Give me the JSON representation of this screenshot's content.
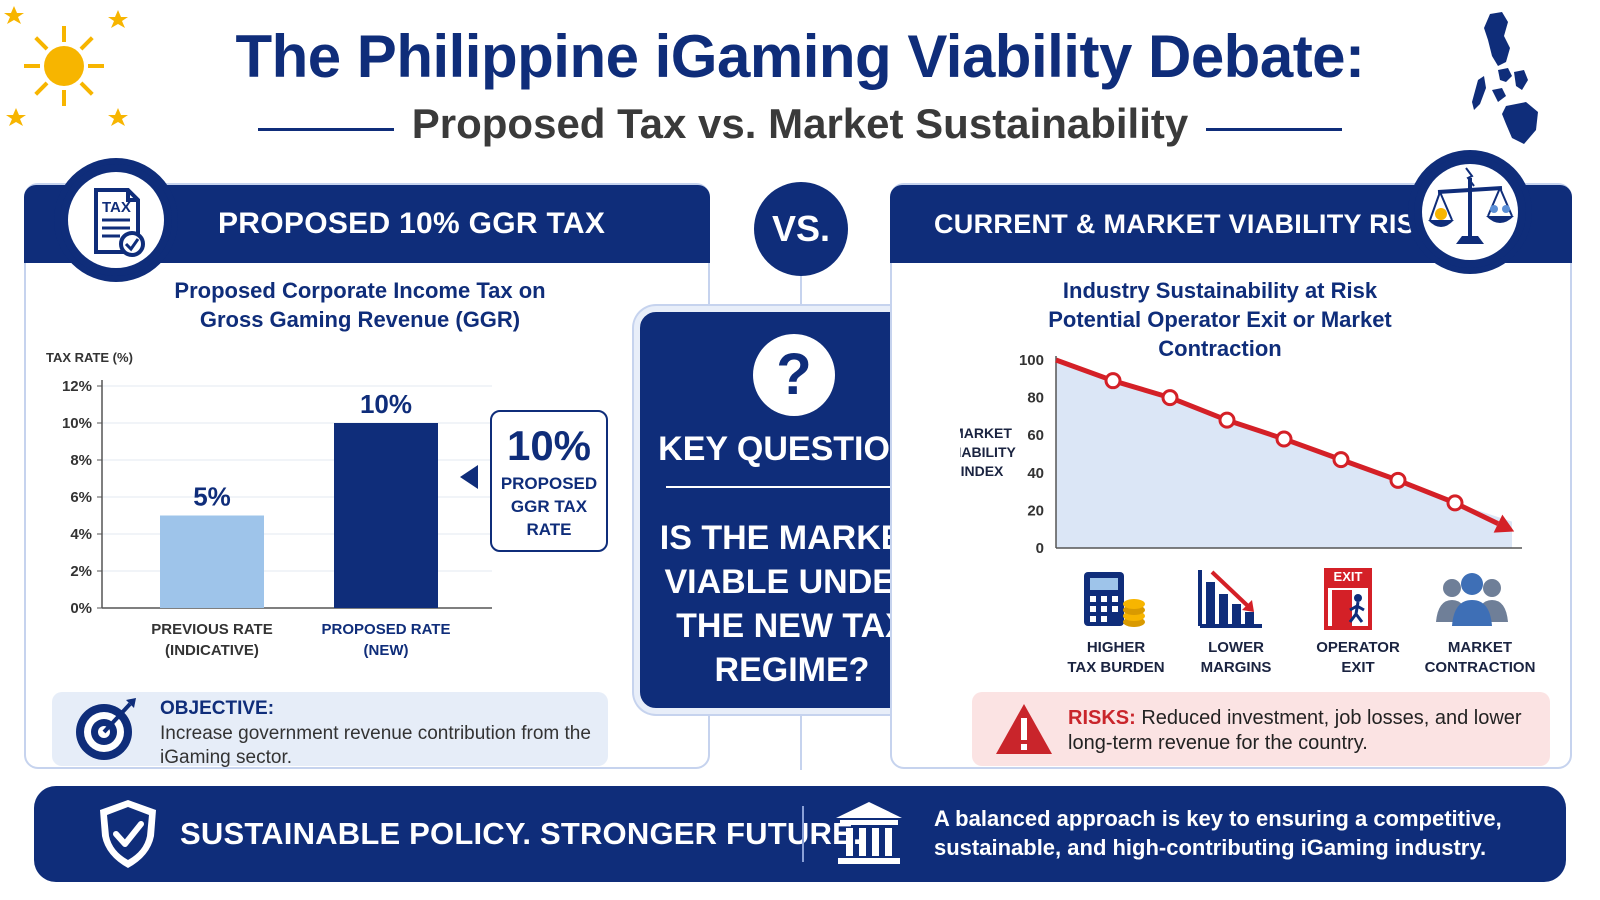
{
  "header": {
    "title": "The Philippine iGaming Viability Debate:",
    "subtitle": "Proposed Tax vs. Market Sustainability"
  },
  "left_panel": {
    "header": "PROPOSED 10% GGR TAX",
    "badge_icon": "tax-document-icon",
    "badge_text": "TAX",
    "section_title_line1": "Proposed Corporate Income Tax on",
    "section_title_line2": "Gross Gaming Revenue (GGR)",
    "callout_value": "10%",
    "callout_label_line1": "PROPOSED",
    "callout_label_line2": "GGR TAX",
    "callout_label_line3": "RATE",
    "objective_label": "OBJECTIVE:",
    "objective_text": "Increase government revenue contribution from the iGaming sector."
  },
  "vs_label": "VS.",
  "center_card": {
    "key_question": "KEY QUESTION:",
    "question_mark": "?",
    "question_line1": "IS THE MARKET",
    "question_line2": "VIABLE UNDER",
    "question_line3": "THE NEW TAX",
    "question_line4": "REGIME?"
  },
  "right_panel": {
    "header": "CURRENT & MARKET VIABILITY RISKS",
    "badge_icon": "scales-icon",
    "section_title_line1": "Industry Sustainability at Risk",
    "section_title_line2": "Potential Operator Exit or Market Contraction",
    "impact_icons": [
      {
        "icon": "calculator-coins-icon",
        "line1": "HIGHER",
        "line2": "TAX BURDEN"
      },
      {
        "icon": "declining-bars-icon",
        "line1": "LOWER",
        "line2": "MARGINS"
      },
      {
        "icon": "exit-door-icon",
        "line1": "OPERATOR",
        "line2": "EXIT",
        "sign": "EXIT"
      },
      {
        "icon": "people-group-icon",
        "line1": "MARKET",
        "line2": "CONTRACTION"
      }
    ],
    "risks_label": "RISKS:",
    "risks_text": " Reduced investment, job losses, and lower long-term revenue for the country."
  },
  "bottom_bar": {
    "tagline": "SUSTAINABLE POLICY. STRONGER FUTURE.",
    "description": "A balanced approach is key to ensuring a competitive, sustainable, and high-contributing iGaming industry."
  },
  "chart_data": [
    {
      "type": "bar",
      "title": "",
      "ylabel": "TAX RATE (%)",
      "ylim": [
        0,
        12
      ],
      "yticks": [
        "0%",
        "2%",
        "4%",
        "6%",
        "8%",
        "10%",
        "12%"
      ],
      "categories": [
        {
          "line1": "PREVIOUS RATE",
          "line2": "(INDICATIVE)"
        },
        {
          "line1": "PROPOSED RATE",
          "line2": "(NEW)"
        }
      ],
      "values": [
        5,
        10
      ],
      "value_labels": [
        "5%",
        "10%"
      ],
      "colors": [
        "#9ec4ea",
        "#0f2d7a"
      ]
    },
    {
      "type": "area",
      "ylabel_lines": [
        "MARKET",
        "VIABILITY",
        "INDEX"
      ],
      "ylim": [
        0,
        100
      ],
      "yticks": [
        "0",
        "20",
        "40",
        "60",
        "80",
        "100"
      ],
      "values": [
        100,
        89,
        80,
        68,
        58,
        47,
        36,
        24,
        14
      ],
      "markers": [
        1,
        2,
        3,
        4,
        5,
        6,
        7
      ],
      "line_color": "#d42027",
      "fill_color": "#dbe6f6"
    }
  ],
  "colors": {
    "navy": "#0f2d7a",
    "sun": "#f7b500",
    "risk_red": "#c9252b"
  }
}
